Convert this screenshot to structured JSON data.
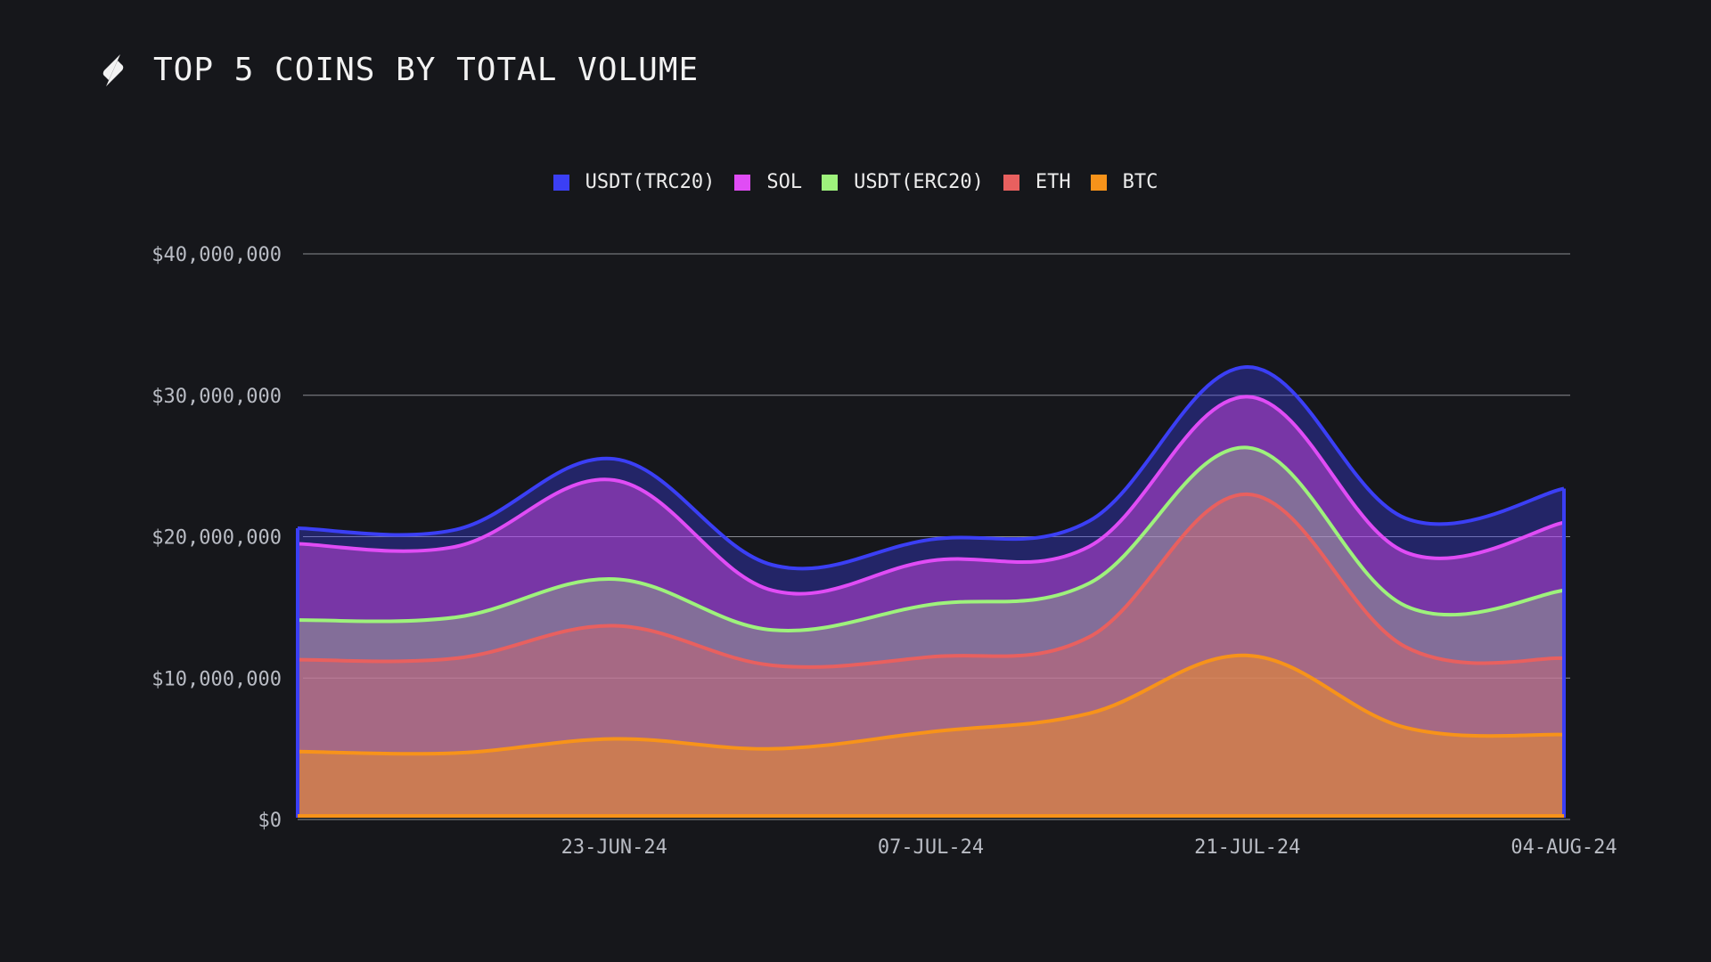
{
  "header": {
    "title": "TOP 5 COINS BY TOTAL VOLUME",
    "logo_icon": "logo-icon"
  },
  "chart_data": {
    "type": "area",
    "title": "TOP 5 COINS BY TOTAL VOLUME",
    "stacked": true,
    "legend_position": "top-center",
    "grid": true,
    "xlabel": "",
    "ylabel": "",
    "ylim": [
      0,
      40000000
    ],
    "y_ticks": [
      0,
      10000000,
      20000000,
      30000000,
      40000000
    ],
    "y_tick_labels": [
      "$0",
      "$10,000,000",
      "$20,000,000",
      "$30,000,000",
      "$40,000,000"
    ],
    "x": [
      "09-JUN-24",
      "16-JUN-24",
      "23-JUN-24",
      "30-JUN-24",
      "07-JUL-24",
      "14-JUL-24",
      "21-JUL-24",
      "28-JUL-24",
      "04-AUG-24"
    ],
    "x_tick_labels": [
      "23-JUN-24",
      "07-JUL-24",
      "21-JUL-24",
      "04-AUG-24"
    ],
    "series": [
      {
        "name": "BTC",
        "color": "#f7931a",
        "values": [
          4800000,
          4700000,
          5700000,
          5000000,
          6200000,
          7500000,
          11600000,
          6500000,
          6000000
        ]
      },
      {
        "name": "ETH",
        "color": "#e8605f",
        "values": [
          6500000,
          6700000,
          8000000,
          5900000,
          5300000,
          5400000,
          11400000,
          5700000,
          5400000
        ]
      },
      {
        "name": "USDT(ERC20)",
        "color": "#9ef27c",
        "values": [
          2800000,
          2900000,
          3300000,
          2500000,
          3700000,
          3800000,
          3300000,
          2900000,
          4800000
        ]
      },
      {
        "name": "SOL",
        "color": "#e04cf5",
        "values": [
          5400000,
          5000000,
          7000000,
          2800000,
          3100000,
          2600000,
          3600000,
          3800000,
          4800000
        ]
      },
      {
        "name": "USDT(TRC20)",
        "color": "#3b3ff5",
        "values": [
          1100000,
          1200000,
          1500000,
          1800000,
          1500000,
          1800000,
          2100000,
          2400000,
          2400000
        ]
      }
    ]
  }
}
